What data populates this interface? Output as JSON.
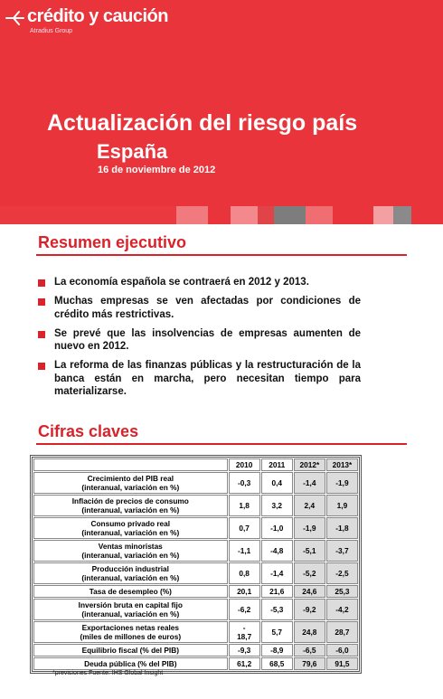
{
  "header": {
    "logo": "crédito y caución",
    "logo_sub": "Atradius Group",
    "title": "Actualización del riesgo país",
    "subtitle": "España",
    "date": "16 de noviembre de 2012"
  },
  "summary": {
    "heading": "Resumen ejecutivo",
    "bullets": [
      "La economía española se contraerá en 2012 y 2013.",
      "Muchas empresas se ven afectadas por condiciones de crédito más restrictivas.",
      "Se prevé que las insolvencias de empresas aumenten de nuevo en 2012.",
      "La reforma de las finanzas públicas y la restructuración de la banca están en marcha, pero necesitan tiempo para materializarse."
    ]
  },
  "figures": {
    "heading": "Cifras claves",
    "table": {
      "columns": [
        "2010",
        "2011",
        "2012*",
        "2013*"
      ],
      "rows": [
        {
          "label": "Crecimiento del PIB real\n(interanual, variación en %)",
          "values": [
            "-0,3",
            "0,4",
            "-1,4",
            "-1,9"
          ]
        },
        {
          "label": "Inflación de precios de consumo\n(interanual, variación en %)",
          "values": [
            "1,8",
            "3,2",
            "2,4",
            "1,9"
          ]
        },
        {
          "label": "Consumo privado real\n(interanual, variación en %)",
          "values": [
            "0,7",
            "-1,0",
            "-1,9",
            "-1,8"
          ]
        },
        {
          "label": "Ventas minoristas\n(interanual, variación en %)",
          "values": [
            "-1,1",
            "-4,8",
            "-5,1",
            "-3,7"
          ]
        },
        {
          "label": "Producción industrial\n(interanual, variación en %)",
          "values": [
            "0,8",
            "-1,4",
            "-5,2",
            "-2,5"
          ]
        },
        {
          "label": "Tasa de desempleo (%)",
          "values": [
            "20,1",
            "21,6",
            "24,6",
            "25,3"
          ]
        },
        {
          "label": "Inversión bruta en capital fijo\n(interanual, variación en %)",
          "values": [
            "-6,2",
            "-5,3",
            "-9,2",
            "-4,2"
          ]
        },
        {
          "label": "Exportaciones netas reales\n(miles de millones de euros)",
          "values": [
            "-\n18,7",
            "5,7",
            "24,8",
            "28,7"
          ]
        },
        {
          "label": "Equilibrio fiscal (% del PIB)",
          "values": [
            "-9,3",
            "-8,9",
            "-6,5",
            "-6,0"
          ]
        },
        {
          "label": "Deuda pública (% del PIB)",
          "values": [
            "61,2",
            "68,5",
            "79,6",
            "91,5"
          ]
        }
      ]
    },
    "footnote": "*previsiones    Fuente: IHS Global Insight"
  }
}
